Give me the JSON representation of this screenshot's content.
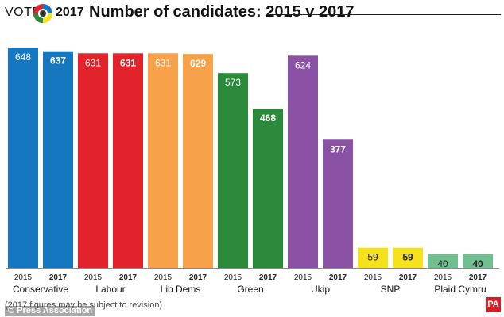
{
  "header": {
    "vote_word": "VOTE",
    "vote_year": "2017",
    "title": "Number of candidates: 2015 v 2017"
  },
  "footer": {
    "note": "(2017 figures may be subject to revision)",
    "pa_logo": "PA",
    "watermark": "© Press Association"
  },
  "chart_data": {
    "type": "bar",
    "title": "Number of candidates: 2015 v 2017",
    "categories": [
      "Conservative",
      "Labour",
      "Lib Dems",
      "Green",
      "Ukip",
      "SNP",
      "Plaid Cymru"
    ],
    "series": [
      {
        "name": "2015",
        "values": [
          648,
          631,
          631,
          573,
          624,
          59,
          40
        ]
      },
      {
        "name": "2017",
        "values": [
          637,
          631,
          629,
          468,
          377,
          59,
          40
        ]
      }
    ],
    "colors": [
      "#1577c0",
      "#e3232c",
      "#f7a14a",
      "#2b8a39",
      "#8b51a5",
      "#f5e21c",
      "#6fc08e"
    ],
    "ylim": [
      0,
      648
    ],
    "grid": false,
    "legend": "none"
  }
}
